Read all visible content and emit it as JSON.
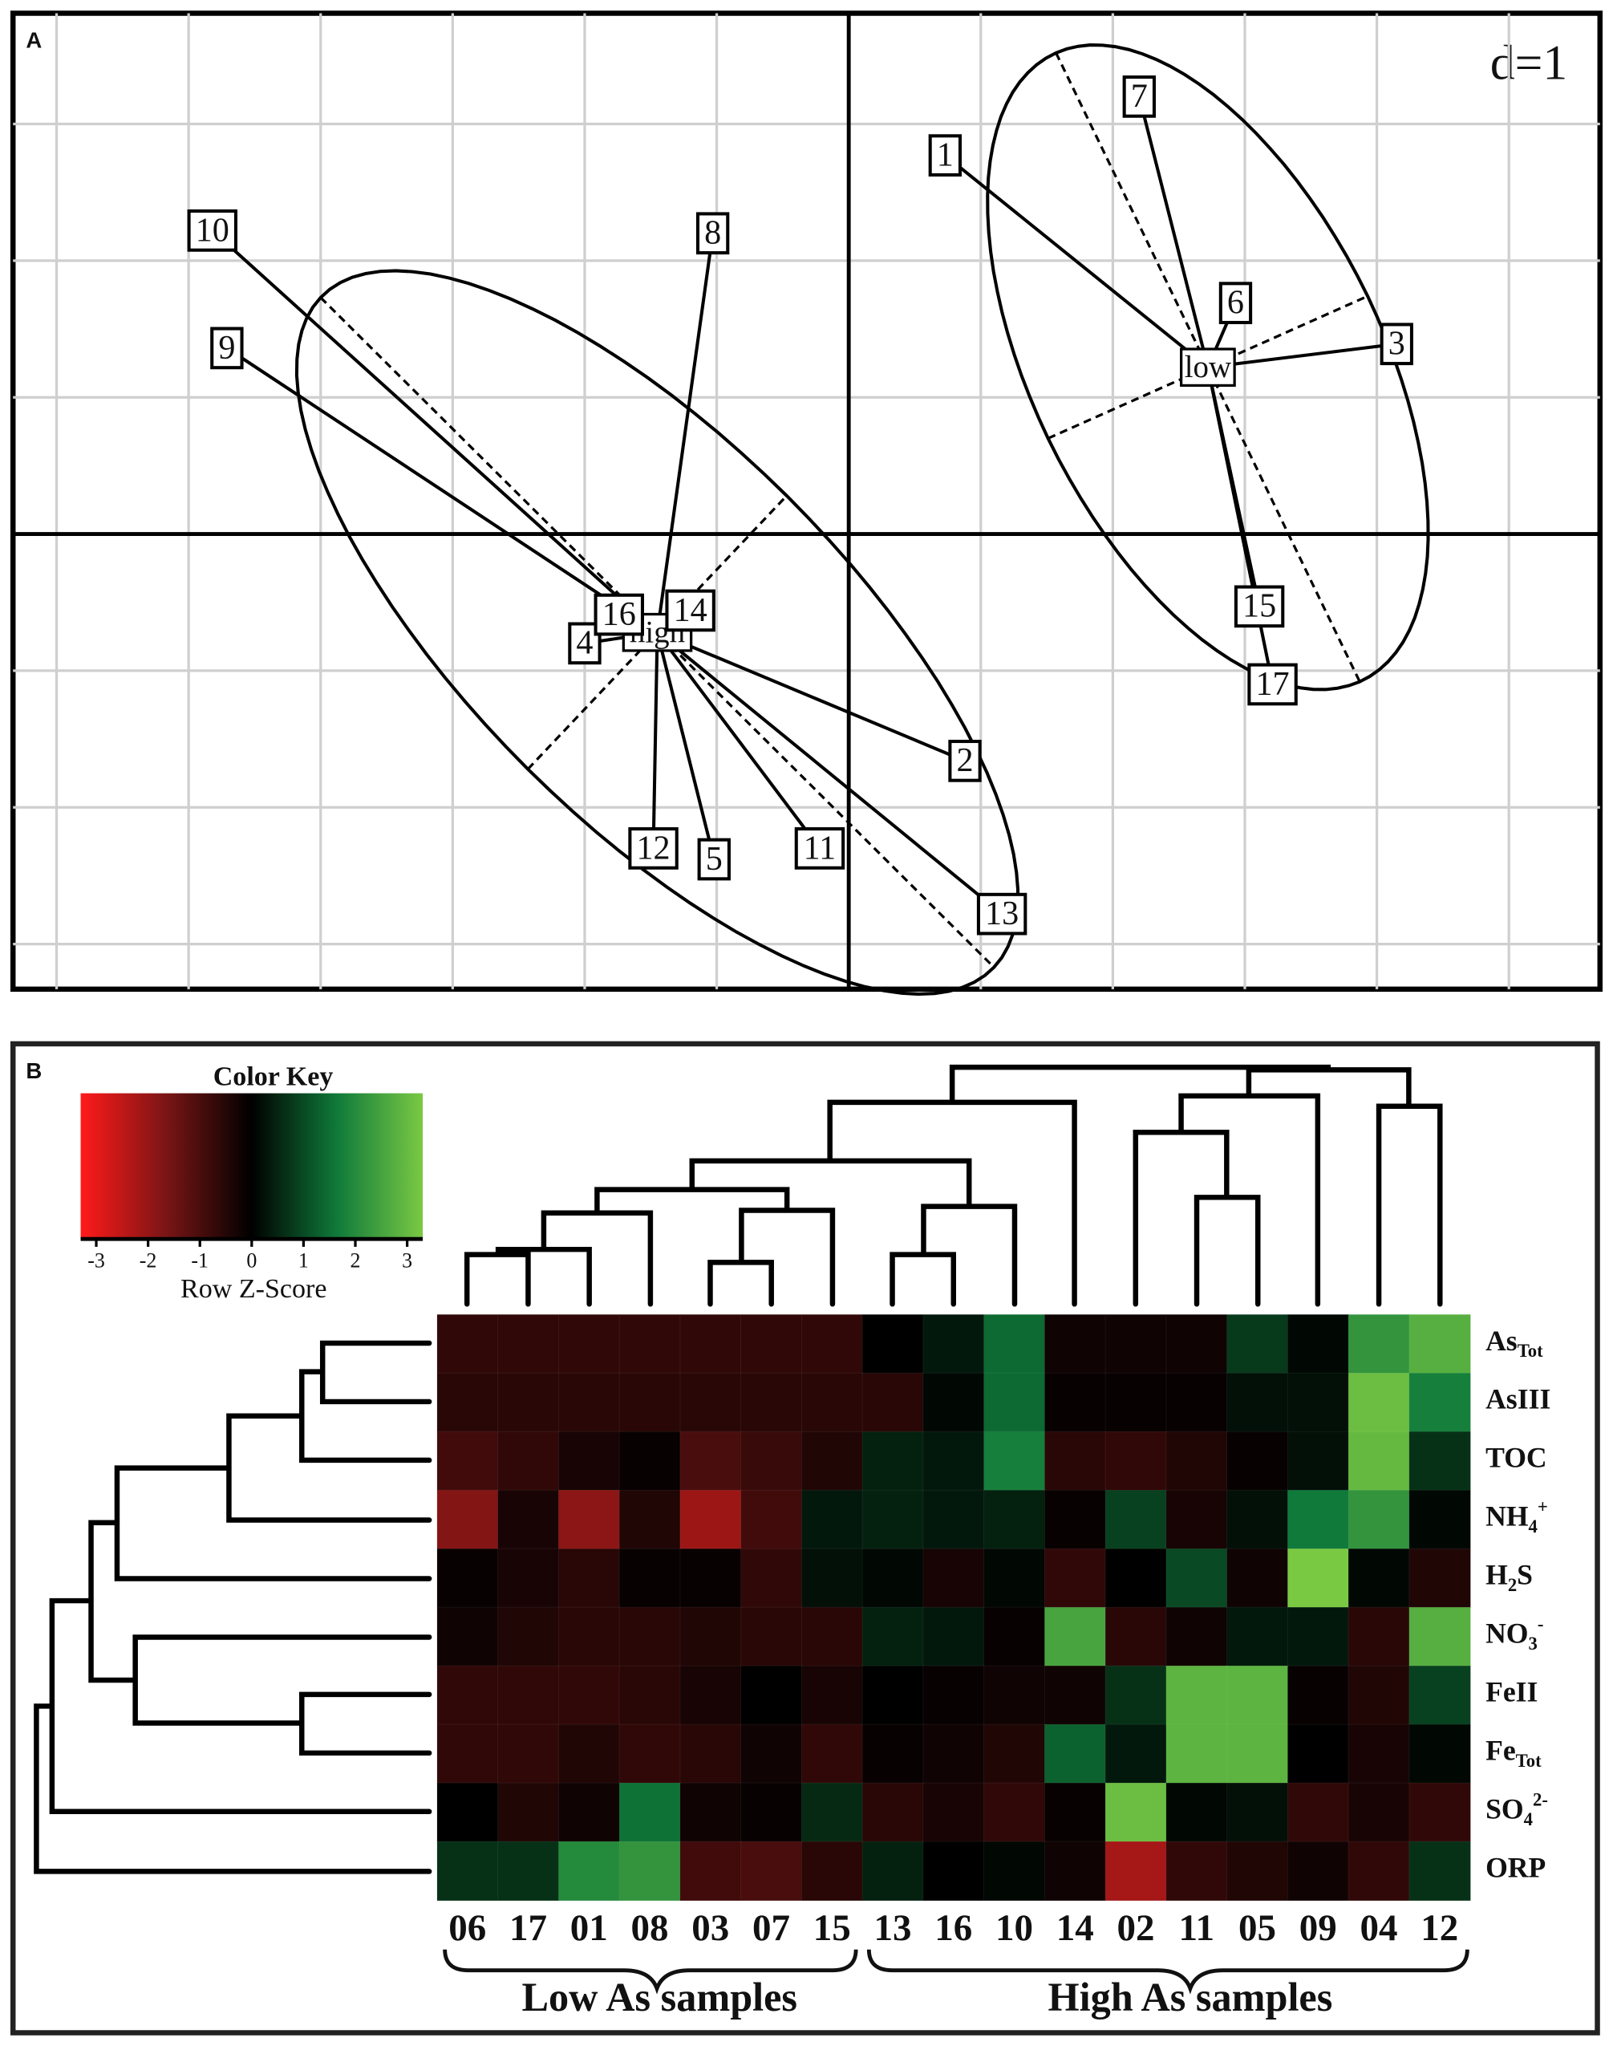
{
  "chart_data": [
    {
      "type": "scatter",
      "panel": "A",
      "scale_label": "d=1",
      "xlim": [
        -6.33,
        5.69
      ],
      "ylim": [
        -3.33,
        3.81
      ],
      "xgrid": [
        -6,
        -5,
        -4,
        -3,
        -2,
        -1,
        0,
        1,
        2,
        3,
        4,
        5
      ],
      "ygrid": [
        -3,
        -2,
        -1,
        0,
        1,
        2,
        3
      ],
      "groups": [
        {
          "name": "high",
          "center": [
            -1.45,
            -0.72
          ],
          "axis1": [
            2.55,
            -2.45
          ],
          "axis2": [
            0.98,
            1.0
          ],
          "points": [
            {
              "label": "10",
              "x": -4.82,
              "y": 2.22
            },
            {
              "label": "8",
              "x": -1.03,
              "y": 2.2
            },
            {
              "label": "9",
              "x": -4.71,
              "y": 1.36
            },
            {
              "label": "4",
              "x": -2.0,
              "y": -0.8
            },
            {
              "label": "2",
              "x": 0.88,
              "y": -1.66
            },
            {
              "label": "12",
              "x": -1.48,
              "y": -2.3
            },
            {
              "label": "5",
              "x": -1.02,
              "y": -2.38
            },
            {
              "label": "11",
              "x": -0.22,
              "y": -2.3
            },
            {
              "label": "13",
              "x": 1.16,
              "y": -2.78
            },
            {
              "label": "16",
              "x": -1.74,
              "y": -0.59
            },
            {
              "label": "14",
              "x": -1.2,
              "y": -0.56
            }
          ]
        },
        {
          "name": "low",
          "center": [
            2.72,
            1.22
          ],
          "axis1": [
            1.15,
            -2.3
          ],
          "axis2": [
            1.21,
            0.52
          ],
          "points": [
            {
              "label": "1",
              "x": 0.73,
              "y": 2.77
            },
            {
              "label": "7",
              "x": 2.2,
              "y": 3.2
            },
            {
              "label": "6",
              "x": 2.93,
              "y": 1.69
            },
            {
              "label": "3",
              "x": 4.15,
              "y": 1.39
            },
            {
              "label": "15",
              "x": 3.11,
              "y": -0.53
            },
            {
              "label": "17",
              "x": 3.21,
              "y": -1.1
            }
          ]
        }
      ]
    },
    {
      "type": "heatmap",
      "panel": "B",
      "key_title": "Color Key",
      "key_label": "Row Z-Score",
      "zlim": [
        -3,
        3
      ],
      "zticks": [
        -3,
        -2,
        -1,
        0,
        1,
        2,
        3
      ],
      "colors": [
        "#ff1a1a",
        "#7a1515",
        "#000000",
        "#0f7a3a",
        "#7ac943"
      ],
      "columns": [
        "06",
        "17",
        "01",
        "08",
        "03",
        "07",
        "15",
        "13",
        "16",
        "10",
        "14",
        "02",
        "11",
        "05",
        "09",
        "04",
        "12"
      ],
      "rows": [
        [
          {
            "text": "As"
          },
          {
            "text": "Tot",
            "shift": "sub"
          }
        ],
        [
          {
            "text": "AsIII"
          }
        ],
        [
          {
            "text": "TOC"
          }
        ],
        [
          {
            "text": "NH"
          },
          {
            "text": "4",
            "shift": "sub"
          },
          {
            "text": "+",
            "shift": "sup"
          }
        ],
        [
          {
            "text": "H"
          },
          {
            "text": "2",
            "shift": "sub"
          },
          {
            "text": "S"
          }
        ],
        [
          {
            "text": "NO"
          },
          {
            "text": "3",
            "shift": "sub"
          },
          {
            "text": "-",
            "shift": "sup"
          }
        ],
        [
          {
            "text": "FeII"
          }
        ],
        [
          {
            "text": "Fe"
          },
          {
            "text": "Tot",
            "shift": "sub"
          }
        ],
        [
          {
            "text": "SO"
          },
          {
            "text": "4",
            "shift": "sub"
          },
          {
            "text": "2-",
            "shift": "sup"
          }
        ],
        [
          {
            "text": "ORP"
          }
        ]
      ],
      "values": [
        [
          -0.6,
          -0.6,
          -0.6,
          -0.6,
          -0.6,
          -0.6,
          -0.6,
          0,
          0.3,
          1.3,
          -0.2,
          -0.2,
          -0.2,
          0.7,
          0.1,
          2.0,
          2.5
        ],
        [
          -0.5,
          -0.5,
          -0.5,
          -0.5,
          -0.5,
          -0.5,
          -0.5,
          -0.5,
          0.1,
          1.3,
          -0.1,
          -0.1,
          -0.1,
          0.2,
          0.2,
          2.8,
          1.6
        ],
        [
          -0.8,
          -0.6,
          -0.3,
          -0.1,
          -0.9,
          -0.7,
          -0.4,
          0.4,
          0.3,
          1.6,
          -0.5,
          -0.6,
          -0.4,
          -0.1,
          0.2,
          2.7,
          0.6
        ],
        [
          -1.6,
          -0.3,
          -1.7,
          -0.4,
          -1.9,
          -0.8,
          0.3,
          0.4,
          0.3,
          0.4,
          -0.1,
          0.8,
          -0.3,
          0.2,
          1.5,
          2.0,
          0.1
        ],
        [
          -0.1,
          -0.3,
          -0.5,
          -0.1,
          -0.1,
          -0.6,
          0.2,
          0.1,
          -0.3,
          0.1,
          -0.6,
          0,
          0.9,
          -0.2,
          3.0,
          0.1,
          -0.4
        ],
        [
          -0.2,
          -0.4,
          -0.5,
          -0.5,
          -0.4,
          -0.5,
          -0.5,
          0.4,
          0.3,
          -0.1,
          2.3,
          -0.5,
          -0.2,
          0.3,
          0.3,
          -0.5,
          2.5
        ],
        [
          -0.6,
          -0.6,
          -0.6,
          -0.5,
          -0.3,
          0,
          -0.3,
          0,
          -0.1,
          -0.2,
          -0.2,
          0.6,
          2.6,
          2.6,
          -0.1,
          -0.4,
          0.8
        ],
        [
          -0.6,
          -0.6,
          -0.4,
          -0.6,
          -0.5,
          -0.2,
          -0.6,
          -0.1,
          -0.2,
          -0.4,
          1.2,
          0.3,
          2.6,
          2.6,
          0,
          -0.3,
          0.1
        ],
        [
          0,
          -0.4,
          -0.2,
          1.4,
          -0.2,
          -0.1,
          0.5,
          -0.5,
          -0.3,
          -0.6,
          -0.1,
          2.8,
          0.1,
          0.2,
          -0.6,
          -0.3,
          -0.6
        ],
        [
          0.6,
          0.6,
          1.8,
          2.0,
          -0.8,
          -0.9,
          -0.5,
          0.4,
          0,
          0.1,
          -0.2,
          -2.0,
          -0.6,
          -0.4,
          -0.2,
          -0.6,
          0.6
        ]
      ],
      "groups": [
        "Low As samples",
        "High As samples"
      ]
    }
  ]
}
